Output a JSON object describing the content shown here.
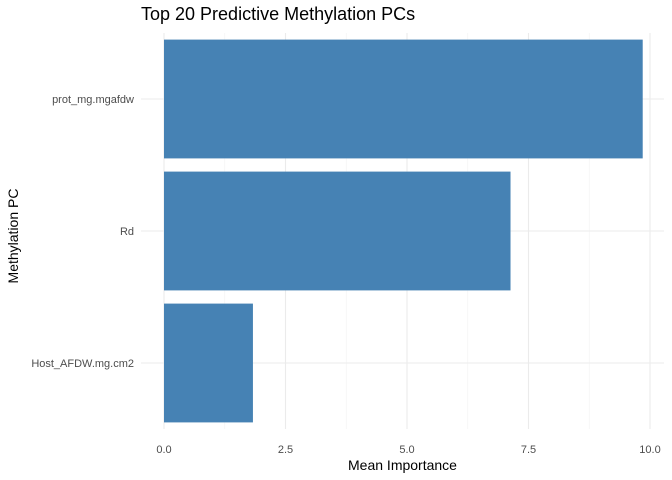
{
  "chart_data": {
    "type": "bar",
    "orientation": "horizontal",
    "title": "Top 20 Predictive Methylation PCs",
    "xlabel": "Mean Importance",
    "ylabel": "Methylation PC",
    "categories": [
      "prot_mg.mgafdw",
      "Rd",
      "Host_AFDW.mg.cm2"
    ],
    "values": [
      9.85,
      7.13,
      1.83
    ],
    "xlim": [
      0,
      10.35
    ],
    "x_ticks": [
      0.0,
      2.5,
      5.0,
      7.5,
      10.0
    ],
    "x_tick_labels": [
      "0.0",
      "2.5",
      "5.0",
      "7.5",
      "10.0"
    ],
    "bar_color": "#4682b4",
    "grid": true,
    "legend": "none"
  }
}
